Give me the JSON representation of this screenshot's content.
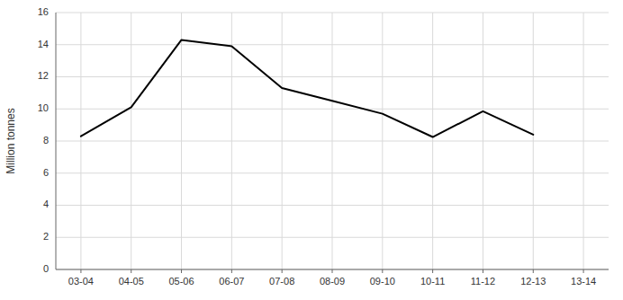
{
  "chart_data": {
    "type": "line",
    "ylabel": "Million tonnes",
    "categories": [
      "03-04",
      "04-05",
      "05-06",
      "06-07",
      "07-08",
      "08-09",
      "09-10",
      "10-11",
      "11-12",
      "12-13",
      "13-14"
    ],
    "values": [
      8.3,
      10.1,
      14.3,
      13.9,
      11.3,
      10.5,
      9.7,
      8.25,
      9.85,
      8.4,
      null
    ],
    "color": "#000000",
    "ylim": [
      0,
      16
    ],
    "yticks": [
      0,
      2,
      4,
      6,
      8,
      10,
      12,
      14,
      16
    ],
    "grid": true
  }
}
